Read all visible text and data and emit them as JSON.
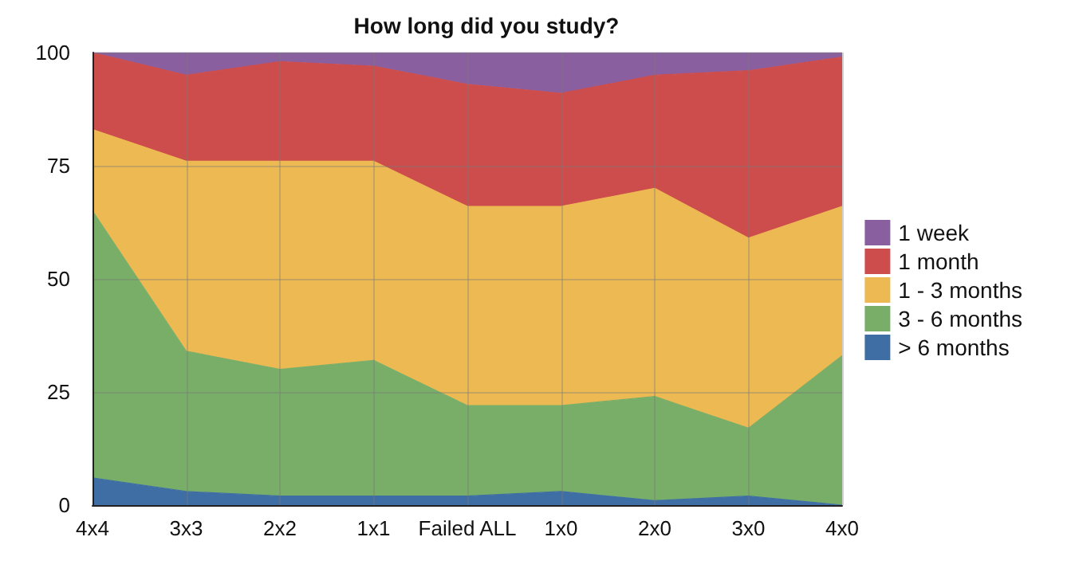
{
  "chart_data": {
    "type": "area",
    "title": "How long did you study?",
    "stacked": true,
    "categories": [
      "4x4",
      "3x3",
      "2x2",
      "1x1",
      "Failed ALL",
      "1x0",
      "2x0",
      "3x0",
      "4x0"
    ],
    "series": [
      {
        "name": "> 6 months",
        "color": "#3e6ea4",
        "values": [
          6,
          3,
          2,
          2,
          2,
          3,
          1,
          2,
          0
        ]
      },
      {
        "name": "3 - 6 months",
        "color": "#79ae69",
        "values": [
          59,
          31,
          28,
          30,
          20,
          19,
          23,
          15,
          33
        ]
      },
      {
        "name": "1 - 3 months",
        "color": "#edb952",
        "values": [
          18,
          42,
          46,
          44,
          44,
          44,
          46,
          42,
          33
        ]
      },
      {
        "name": "1 month",
        "color": "#cd4d4d",
        "values": [
          17,
          19,
          22,
          21,
          27,
          25,
          25,
          37,
          33
        ]
      },
      {
        "name": "1 week",
        "color": "#8a5fa0",
        "values": [
          0,
          5,
          2,
          3,
          7,
          9,
          5,
          4,
          1
        ]
      }
    ],
    "ylim": [
      0,
      100
    ],
    "yticks": [
      0,
      25,
      50,
      75,
      100
    ],
    "grid": true,
    "legend": "right"
  }
}
